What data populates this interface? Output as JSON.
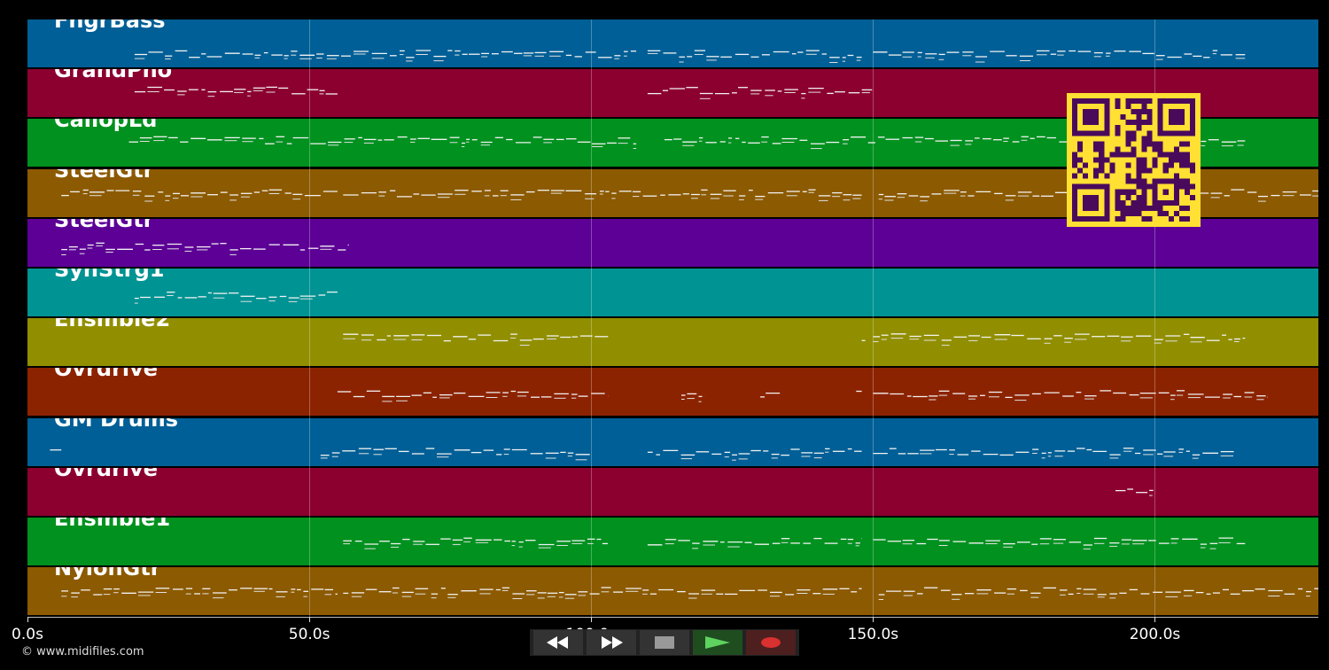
{
  "tracks": [
    {
      "name": "FngrBass",
      "color": "#005f96"
    },
    {
      "name": "GrandPno",
      "color": "#8c0030"
    },
    {
      "name": "CaliopLd",
      "color": "#00911f"
    },
    {
      "name": "SteelGtr",
      "color": "#8c5a00"
    },
    {
      "name": "SteelGtr",
      "color": "#5c0096"
    },
    {
      "name": "SynStrg1",
      "color": "#009393"
    },
    {
      "name": "Ensmble2",
      "color": "#918f00"
    },
    {
      "name": "Ovrdrive",
      "color": "#8c2300"
    },
    {
      "name": "GM Drums",
      "color": "#005f96"
    },
    {
      "name": "Ovrdrive",
      "color": "#8c0030"
    },
    {
      "name": "Ensmble1",
      "color": "#00911f"
    },
    {
      "name": "NylonGtr",
      "color": "#8c5a00"
    }
  ],
  "timeline": {
    "max_seconds": 229,
    "ticks": [
      {
        "value": 0,
        "label": "0.0s"
      },
      {
        "value": 50,
        "label": "50.0s"
      },
      {
        "value": 100,
        "label": "100.0s"
      },
      {
        "value": 150,
        "label": "150.0s"
      },
      {
        "value": 200,
        "label": "200.0s"
      }
    ]
  },
  "note_segments": [
    [
      [
        19,
        108
      ],
      [
        110,
        148
      ],
      [
        150,
        216
      ]
    ],
    [
      [
        19,
        55
      ],
      [
        110,
        150
      ]
    ],
    [
      [
        18,
        108
      ],
      [
        113,
        216
      ]
    ],
    [
      [
        6,
        55
      ],
      [
        56,
        148
      ],
      [
        151,
        229
      ]
    ],
    [
      [
        6,
        57
      ]
    ],
    [
      [
        19,
        55
      ]
    ],
    [
      [
        56,
        103
      ],
      [
        148,
        148
      ],
      [
        150,
        216
      ]
    ],
    [
      [
        55,
        103
      ],
      [
        116,
        120
      ],
      [
        130,
        134
      ],
      [
        147,
        148
      ],
      [
        150,
        220
      ]
    ],
    [
      [
        4,
        6
      ],
      [
        52,
        100
      ],
      [
        110,
        148
      ],
      [
        150,
        214
      ]
    ],
    [
      [
        193,
        200
      ]
    ],
    [
      [
        56,
        103
      ],
      [
        110,
        148
      ],
      [
        150,
        216
      ]
    ],
    [
      [
        6,
        55
      ],
      [
        56,
        148
      ],
      [
        151,
        229
      ]
    ]
  ],
  "note_rows": [
    0.72,
    0.45,
    0.45,
    0.5,
    0.58,
    0.55,
    0.4,
    0.55,
    0.7,
    0.5,
    0.5,
    0.5
  ],
  "copyright": "© www.midifiles.com",
  "transport": {
    "rewind_label": "◀◀",
    "forward_label": "▶▶",
    "stop_label": "stop",
    "play_label": "play",
    "record_label": "record"
  },
  "colors": {
    "background": "#000000",
    "qr_fg": "#4a0a5c",
    "qr_bg": "#ffe033"
  }
}
